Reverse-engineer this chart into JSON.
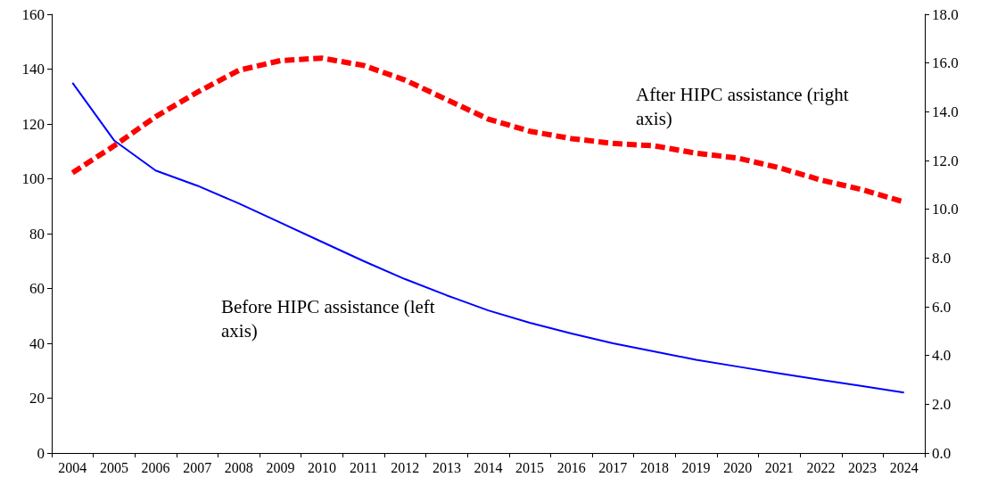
{
  "chart_data": {
    "type": "line",
    "categories": [
      "2004",
      "2005",
      "2006",
      "2007",
      "2008",
      "2009",
      "2010",
      "2011",
      "2012",
      "2013",
      "2014",
      "2015",
      "2016",
      "2017",
      "2018",
      "2019",
      "2020",
      "2021",
      "2022",
      "2023",
      "2024"
    ],
    "series": [
      {
        "name": "Before HIPC assistance (left axis)",
        "color": "#0000ff",
        "line_style": "solid",
        "values": [
          135,
          114,
          103,
          97.5,
          91,
          84,
          77,
          70,
          63.4,
          57.5,
          52,
          47.5,
          43.6,
          40,
          37,
          34,
          31.5,
          29,
          26.7,
          24.4,
          22
        ]
      },
      {
        "name": "After HIPC assistance (right axis)",
        "color": "#ff0000",
        "line_style": "dashed",
        "axis": "y2",
        "values": [
          11.5,
          12.6,
          13.8,
          14.8,
          15.7,
          16.1,
          16.2,
          15.9,
          15.3,
          14.5,
          13.7,
          13.2,
          12.9,
          12.7,
          12.6,
          12.3,
          12.1,
          11.7,
          11.2,
          10.8,
          10.3
        ]
      }
    ],
    "ylim": [
      0,
      160
    ],
    "yticks": [
      0,
      20,
      40,
      60,
      80,
      100,
      120,
      140,
      160
    ],
    "y2lim": [
      0,
      18
    ],
    "y2ticks": [
      {
        "value": 0,
        "label": "0.0"
      },
      {
        "value": 2,
        "label": "2.0"
      },
      {
        "value": 4,
        "label": "4.0"
      },
      {
        "value": 6,
        "label": "6.0"
      },
      {
        "value": 8,
        "label": "8.0"
      },
      {
        "value": 10,
        "label": "10.0"
      },
      {
        "value": 12,
        "label": "12.0"
      },
      {
        "value": 14,
        "label": "14.0"
      },
      {
        "value": 16,
        "label": "16.0"
      },
      {
        "value": 18,
        "label": "18.0"
      }
    ],
    "grid": false,
    "marker": "none"
  }
}
